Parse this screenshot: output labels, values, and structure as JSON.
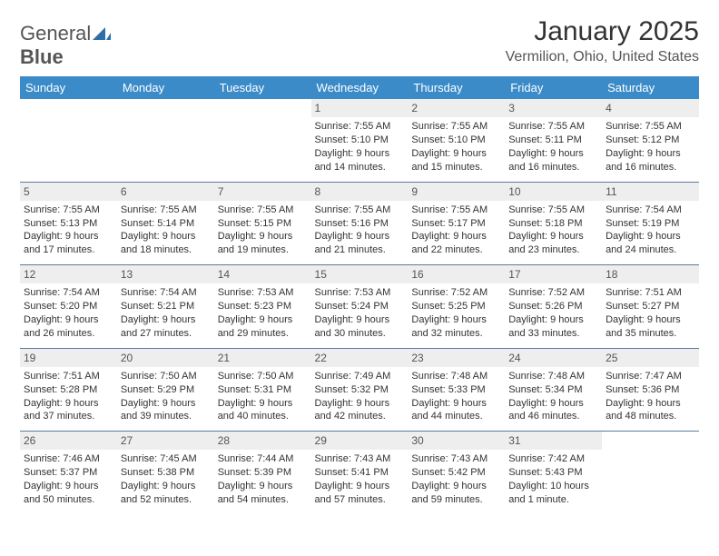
{
  "logo": {
    "part1": "General",
    "part2": "Blue"
  },
  "title": "January 2025",
  "location": "Vermilion, Ohio, United States",
  "colors": {
    "header_bg": "#3b8bc9",
    "header_fg": "#ffffff",
    "daynum_bg": "#eeeeee",
    "row_border": "#5a7ca0",
    "logo_icon": "#2f6fa8"
  },
  "day_headers": [
    "Sunday",
    "Monday",
    "Tuesday",
    "Wednesday",
    "Thursday",
    "Friday",
    "Saturday"
  ],
  "weeks": [
    [
      null,
      null,
      null,
      {
        "n": "1",
        "sr": "Sunrise: 7:55 AM",
        "ss": "Sunset: 5:10 PM",
        "d1": "Daylight: 9 hours",
        "d2": "and 14 minutes."
      },
      {
        "n": "2",
        "sr": "Sunrise: 7:55 AM",
        "ss": "Sunset: 5:10 PM",
        "d1": "Daylight: 9 hours",
        "d2": "and 15 minutes."
      },
      {
        "n": "3",
        "sr": "Sunrise: 7:55 AM",
        "ss": "Sunset: 5:11 PM",
        "d1": "Daylight: 9 hours",
        "d2": "and 16 minutes."
      },
      {
        "n": "4",
        "sr": "Sunrise: 7:55 AM",
        "ss": "Sunset: 5:12 PM",
        "d1": "Daylight: 9 hours",
        "d2": "and 16 minutes."
      }
    ],
    [
      {
        "n": "5",
        "sr": "Sunrise: 7:55 AM",
        "ss": "Sunset: 5:13 PM",
        "d1": "Daylight: 9 hours",
        "d2": "and 17 minutes."
      },
      {
        "n": "6",
        "sr": "Sunrise: 7:55 AM",
        "ss": "Sunset: 5:14 PM",
        "d1": "Daylight: 9 hours",
        "d2": "and 18 minutes."
      },
      {
        "n": "7",
        "sr": "Sunrise: 7:55 AM",
        "ss": "Sunset: 5:15 PM",
        "d1": "Daylight: 9 hours",
        "d2": "and 19 minutes."
      },
      {
        "n": "8",
        "sr": "Sunrise: 7:55 AM",
        "ss": "Sunset: 5:16 PM",
        "d1": "Daylight: 9 hours",
        "d2": "and 21 minutes."
      },
      {
        "n": "9",
        "sr": "Sunrise: 7:55 AM",
        "ss": "Sunset: 5:17 PM",
        "d1": "Daylight: 9 hours",
        "d2": "and 22 minutes."
      },
      {
        "n": "10",
        "sr": "Sunrise: 7:55 AM",
        "ss": "Sunset: 5:18 PM",
        "d1": "Daylight: 9 hours",
        "d2": "and 23 minutes."
      },
      {
        "n": "11",
        "sr": "Sunrise: 7:54 AM",
        "ss": "Sunset: 5:19 PM",
        "d1": "Daylight: 9 hours",
        "d2": "and 24 minutes."
      }
    ],
    [
      {
        "n": "12",
        "sr": "Sunrise: 7:54 AM",
        "ss": "Sunset: 5:20 PM",
        "d1": "Daylight: 9 hours",
        "d2": "and 26 minutes."
      },
      {
        "n": "13",
        "sr": "Sunrise: 7:54 AM",
        "ss": "Sunset: 5:21 PM",
        "d1": "Daylight: 9 hours",
        "d2": "and 27 minutes."
      },
      {
        "n": "14",
        "sr": "Sunrise: 7:53 AM",
        "ss": "Sunset: 5:23 PM",
        "d1": "Daylight: 9 hours",
        "d2": "and 29 minutes."
      },
      {
        "n": "15",
        "sr": "Sunrise: 7:53 AM",
        "ss": "Sunset: 5:24 PM",
        "d1": "Daylight: 9 hours",
        "d2": "and 30 minutes."
      },
      {
        "n": "16",
        "sr": "Sunrise: 7:52 AM",
        "ss": "Sunset: 5:25 PM",
        "d1": "Daylight: 9 hours",
        "d2": "and 32 minutes."
      },
      {
        "n": "17",
        "sr": "Sunrise: 7:52 AM",
        "ss": "Sunset: 5:26 PM",
        "d1": "Daylight: 9 hours",
        "d2": "and 33 minutes."
      },
      {
        "n": "18",
        "sr": "Sunrise: 7:51 AM",
        "ss": "Sunset: 5:27 PM",
        "d1": "Daylight: 9 hours",
        "d2": "and 35 minutes."
      }
    ],
    [
      {
        "n": "19",
        "sr": "Sunrise: 7:51 AM",
        "ss": "Sunset: 5:28 PM",
        "d1": "Daylight: 9 hours",
        "d2": "and 37 minutes."
      },
      {
        "n": "20",
        "sr": "Sunrise: 7:50 AM",
        "ss": "Sunset: 5:29 PM",
        "d1": "Daylight: 9 hours",
        "d2": "and 39 minutes."
      },
      {
        "n": "21",
        "sr": "Sunrise: 7:50 AM",
        "ss": "Sunset: 5:31 PM",
        "d1": "Daylight: 9 hours",
        "d2": "and 40 minutes."
      },
      {
        "n": "22",
        "sr": "Sunrise: 7:49 AM",
        "ss": "Sunset: 5:32 PM",
        "d1": "Daylight: 9 hours",
        "d2": "and 42 minutes."
      },
      {
        "n": "23",
        "sr": "Sunrise: 7:48 AM",
        "ss": "Sunset: 5:33 PM",
        "d1": "Daylight: 9 hours",
        "d2": "and 44 minutes."
      },
      {
        "n": "24",
        "sr": "Sunrise: 7:48 AM",
        "ss": "Sunset: 5:34 PM",
        "d1": "Daylight: 9 hours",
        "d2": "and 46 minutes."
      },
      {
        "n": "25",
        "sr": "Sunrise: 7:47 AM",
        "ss": "Sunset: 5:36 PM",
        "d1": "Daylight: 9 hours",
        "d2": "and 48 minutes."
      }
    ],
    [
      {
        "n": "26",
        "sr": "Sunrise: 7:46 AM",
        "ss": "Sunset: 5:37 PM",
        "d1": "Daylight: 9 hours",
        "d2": "and 50 minutes."
      },
      {
        "n": "27",
        "sr": "Sunrise: 7:45 AM",
        "ss": "Sunset: 5:38 PM",
        "d1": "Daylight: 9 hours",
        "d2": "and 52 minutes."
      },
      {
        "n": "28",
        "sr": "Sunrise: 7:44 AM",
        "ss": "Sunset: 5:39 PM",
        "d1": "Daylight: 9 hours",
        "d2": "and 54 minutes."
      },
      {
        "n": "29",
        "sr": "Sunrise: 7:43 AM",
        "ss": "Sunset: 5:41 PM",
        "d1": "Daylight: 9 hours",
        "d2": "and 57 minutes."
      },
      {
        "n": "30",
        "sr": "Sunrise: 7:43 AM",
        "ss": "Sunset: 5:42 PM",
        "d1": "Daylight: 9 hours",
        "d2": "and 59 minutes."
      },
      {
        "n": "31",
        "sr": "Sunrise: 7:42 AM",
        "ss": "Sunset: 5:43 PM",
        "d1": "Daylight: 10 hours",
        "d2": "and 1 minute."
      },
      null
    ]
  ]
}
